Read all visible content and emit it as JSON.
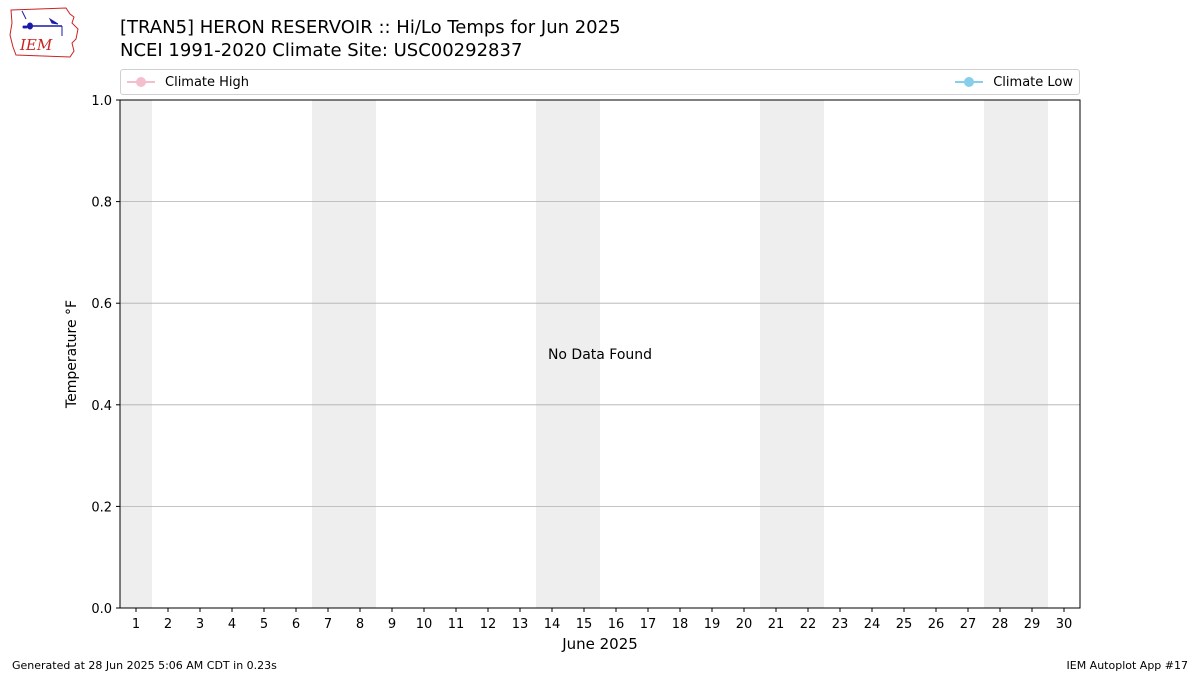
{
  "header": {
    "title_line1": "[TRAN5] HERON RESERVOIR :: Hi/Lo Temps for Jun 2025",
    "title_line2": "NCEI 1991-2020 Climate Site: USC00292837",
    "logo_text": "IEM"
  },
  "footer": {
    "generated": "Generated at 28 Jun 2025 5:06 AM CDT in 0.23s",
    "app": "IEM Autoplot App #17"
  },
  "colors": {
    "climate_high": "#f4bfcc",
    "climate_low": "#87ceeb",
    "weekend_band": "#eeeeee",
    "grid": "#b0b0b0",
    "logo_red": "#cc2222",
    "logo_blue": "#1a1aa8"
  },
  "chart_data": {
    "type": "line",
    "xlabel": "June 2025",
    "ylabel": "Temperature °F",
    "xlim": [
      0.5,
      30.5
    ],
    "ylim": [
      0,
      1
    ],
    "x_ticks": [
      1,
      2,
      3,
      4,
      5,
      6,
      7,
      8,
      9,
      10,
      11,
      12,
      13,
      14,
      15,
      16,
      17,
      18,
      19,
      20,
      21,
      22,
      23,
      24,
      25,
      26,
      27,
      28,
      29,
      30
    ],
    "y_ticks": [
      0.0,
      0.2,
      0.4,
      0.6,
      0.8,
      1.0
    ],
    "y_tick_labels": [
      "0.0",
      "0.2",
      "0.4",
      "0.6",
      "0.8",
      "1.0"
    ],
    "weekend_bands": [
      [
        0.5,
        1.5
      ],
      [
        6.5,
        8.5
      ],
      [
        13.5,
        15.5
      ],
      [
        20.5,
        22.5
      ],
      [
        27.5,
        29.5
      ]
    ],
    "grid": "horizontal",
    "legend_placement": "top",
    "series": [
      {
        "name": "Climate High",
        "color": "#f4bfcc",
        "values": []
      },
      {
        "name": "Climate Low",
        "color": "#87ceeb",
        "values": []
      }
    ],
    "annotation": {
      "text": "No Data Found",
      "x": 15.5,
      "y": 0.5
    }
  }
}
